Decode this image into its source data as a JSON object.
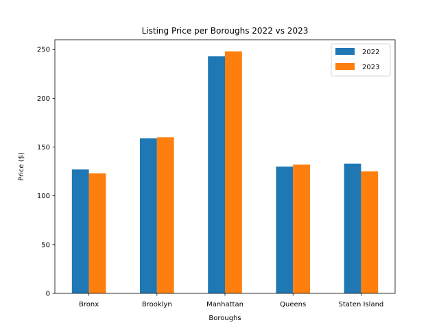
{
  "chart_data": {
    "type": "bar",
    "title": "Listing Price per Boroughs 2022 vs 2023",
    "xlabel": "Boroughs",
    "ylabel": "Price ($)",
    "categories": [
      "Bronx",
      "Brooklyn",
      "Manhattan",
      "Queens",
      "Staten Island"
    ],
    "series": [
      {
        "name": "2022",
        "color": "#1f77b4",
        "values": [
          127,
          159,
          243,
          130,
          133
        ]
      },
      {
        "name": "2023",
        "color": "#ff7f0e",
        "values": [
          123,
          160,
          248,
          132,
          125
        ]
      }
    ],
    "ylim": [
      0,
      260
    ],
    "yticks": [
      0,
      50,
      100,
      150,
      200,
      250
    ],
    "legend_position": "top-right",
    "grid": false
  }
}
